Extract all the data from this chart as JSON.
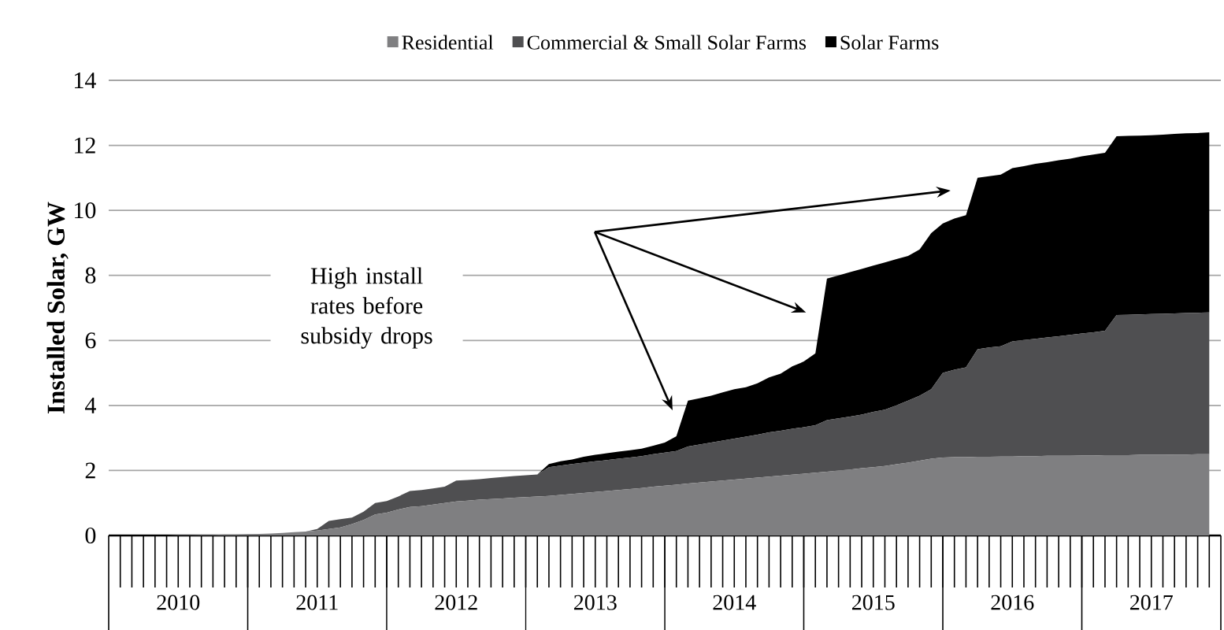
{
  "chart_data": {
    "type": "area",
    "stacked": true,
    "ylabel": "Installed Solar, GW",
    "legend": "top",
    "grid": "y",
    "xlim": [
      "2010-01",
      "2018-01"
    ],
    "ylim": [
      0,
      14
    ],
    "yticks": [
      0,
      2,
      4,
      6,
      8,
      10,
      12,
      14
    ],
    "xticks": [
      {
        "value": "2010-07",
        "label": "2010"
      },
      {
        "value": "2011-07",
        "label": "2011"
      },
      {
        "value": "2012-07",
        "label": "2012"
      },
      {
        "value": "2013-07",
        "label": "2013"
      },
      {
        "value": "2014-07",
        "label": "2014"
      },
      {
        "value": "2015-07",
        "label": "2015"
      },
      {
        "value": "2016-07",
        "label": "2016"
      },
      {
        "value": "2017-07",
        "label": "2017"
      }
    ],
    "annotations": [
      "High install rates before subsidy drops"
    ],
    "x": [
      "2010-01",
      "2010-02",
      "2010-03",
      "2010-04",
      "2010-05",
      "2010-06",
      "2010-07",
      "2010-08",
      "2010-09",
      "2010-10",
      "2010-11",
      "2010-12",
      "2011-01",
      "2011-02",
      "2011-03",
      "2011-04",
      "2011-05",
      "2011-06",
      "2011-07",
      "2011-08",
      "2011-09",
      "2011-10",
      "2011-11",
      "2011-12",
      "2012-01",
      "2012-02",
      "2012-03",
      "2012-04",
      "2012-05",
      "2012-06",
      "2012-07",
      "2012-08",
      "2012-09",
      "2012-10",
      "2012-11",
      "2012-12",
      "2013-01",
      "2013-02",
      "2013-03",
      "2013-04",
      "2013-05",
      "2013-06",
      "2013-07",
      "2013-08",
      "2013-09",
      "2013-10",
      "2013-11",
      "2013-12",
      "2014-01",
      "2014-02",
      "2014-03",
      "2014-04",
      "2014-05",
      "2014-06",
      "2014-07",
      "2014-08",
      "2014-09",
      "2014-10",
      "2014-11",
      "2014-12",
      "2015-01",
      "2015-02",
      "2015-03",
      "2015-04",
      "2015-05",
      "2015-06",
      "2015-07",
      "2015-08",
      "2015-09",
      "2015-10",
      "2015-11",
      "2015-12",
      "2016-01",
      "2016-02",
      "2016-03",
      "2016-04",
      "2016-05",
      "2016-06",
      "2016-07",
      "2016-08",
      "2016-09",
      "2016-10",
      "2016-11",
      "2016-12",
      "2017-01",
      "2017-02",
      "2017-03",
      "2017-04",
      "2017-05",
      "2017-06",
      "2017-07",
      "2017-08",
      "2017-09",
      "2017-10",
      "2017-11",
      "2017-12"
    ],
    "series": [
      {
        "name": "Residential",
        "color": "#7f7f81",
        "values": [
          0,
          0,
          0,
          0,
          0,
          0,
          0.01,
          0.01,
          0.02,
          0.02,
          0.03,
          0.03,
          0.04,
          0.05,
          0.06,
          0.08,
          0.1,
          0.12,
          0.15,
          0.2,
          0.25,
          0.35,
          0.48,
          0.65,
          0.7,
          0.8,
          0.88,
          0.9,
          0.95,
          1.0,
          1.05,
          1.07,
          1.1,
          1.12,
          1.14,
          1.16,
          1.18,
          1.2,
          1.22,
          1.25,
          1.28,
          1.31,
          1.34,
          1.37,
          1.4,
          1.43,
          1.46,
          1.5,
          1.53,
          1.56,
          1.6,
          1.63,
          1.66,
          1.69,
          1.72,
          1.75,
          1.78,
          1.81,
          1.84,
          1.87,
          1.9,
          1.93,
          1.96,
          2.0,
          2.03,
          2.07,
          2.1,
          2.14,
          2.19,
          2.24,
          2.3,
          2.36,
          2.4,
          2.41,
          2.41,
          2.42,
          2.42,
          2.43,
          2.43,
          2.44,
          2.44,
          2.45,
          2.45,
          2.45,
          2.46,
          2.46,
          2.47,
          2.47,
          2.47,
          2.48,
          2.48,
          2.48,
          2.49,
          2.49,
          2.5,
          2.5
        ]
      },
      {
        "name": "Commercial & Small Solar Farms",
        "color": "#4f4f51",
        "values": [
          0,
          0,
          0,
          0,
          0,
          0,
          0,
          0,
          0,
          0,
          0,
          0,
          0,
          0,
          0,
          0,
          0,
          0,
          0.05,
          0.25,
          0.25,
          0.2,
          0.25,
          0.35,
          0.36,
          0.4,
          0.49,
          0.5,
          0.5,
          0.5,
          0.64,
          0.64,
          0.63,
          0.65,
          0.66,
          0.67,
          0.67,
          0.68,
          0.88,
          0.9,
          0.92,
          0.93,
          0.94,
          0.95,
          0.96,
          0.97,
          0.98,
          1.0,
          1.02,
          1.04,
          1.14,
          1.17,
          1.2,
          1.23,
          1.26,
          1.29,
          1.32,
          1.36,
          1.38,
          1.41,
          1.43,
          1.46,
          1.59,
          1.6,
          1.63,
          1.65,
          1.7,
          1.73,
          1.81,
          1.91,
          2.0,
          2.14,
          2.6,
          2.69,
          2.76,
          3.31,
          3.36,
          3.39,
          3.54,
          3.57,
          3.61,
          3.64,
          3.68,
          3.72,
          3.75,
          3.79,
          3.83,
          4.31,
          4.32,
          4.32,
          4.33,
          4.34,
          4.34,
          4.35,
          4.35,
          4.36
        ]
      },
      {
        "name": "Solar Farms",
        "color": "#000000",
        "values": [
          0,
          0,
          0,
          0,
          0,
          0,
          0,
          0,
          0,
          0,
          0,
          0,
          0,
          0,
          0,
          0,
          0,
          0,
          0,
          0,
          0,
          0,
          0,
          0,
          0,
          0,
          0,
          0,
          0,
          0,
          0,
          0,
          0,
          0,
          0,
          0,
          0,
          0,
          0.1,
          0.13,
          0.14,
          0.18,
          0.2,
          0.21,
          0.22,
          0.22,
          0.23,
          0.26,
          0.31,
          0.45,
          1.41,
          1.42,
          1.44,
          1.48,
          1.52,
          1.52,
          1.58,
          1.69,
          1.76,
          1.92,
          2.02,
          2.21,
          4.35,
          4.4,
          4.44,
          4.48,
          4.5,
          4.53,
          4.5,
          4.45,
          4.5,
          4.8,
          4.6,
          4.65,
          4.68,
          5.27,
          5.27,
          5.28,
          5.33,
          5.35,
          5.38,
          5.39,
          5.41,
          5.42,
          5.45,
          5.47,
          5.47,
          5.5,
          5.5,
          5.5,
          5.5,
          5.51,
          5.52,
          5.53,
          5.53,
          5.54
        ]
      }
    ]
  }
}
